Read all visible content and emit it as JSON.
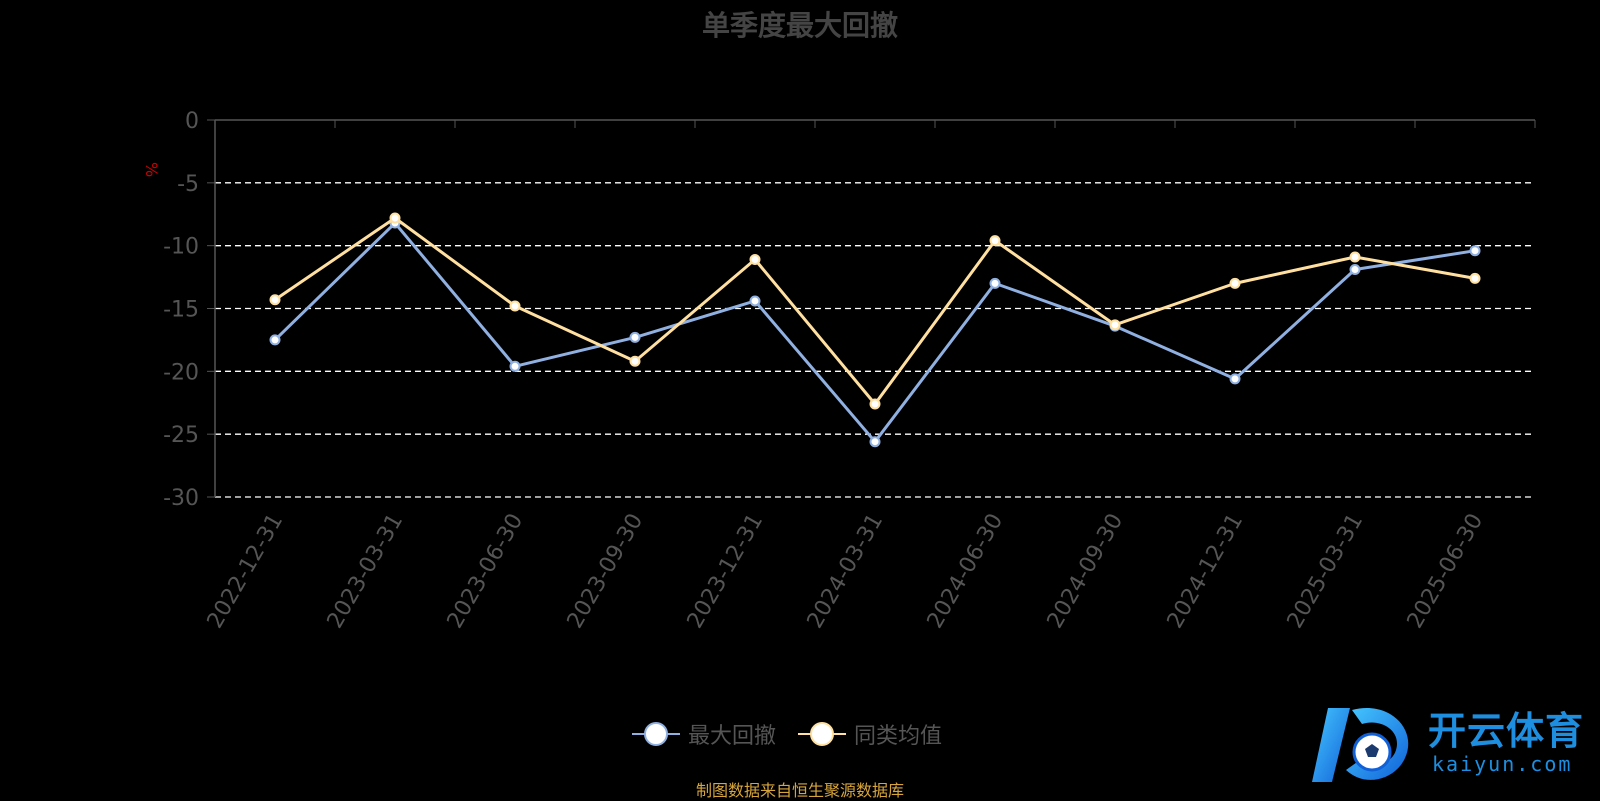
{
  "chart_data": {
    "type": "line",
    "title": "单季度最大回撤",
    "ylabel": "%",
    "ylim": [
      -30,
      0
    ],
    "yticks": [
      0,
      -5,
      -10,
      -15,
      -20,
      -25,
      -30
    ],
    "categories": [
      "2022-12-31",
      "2023-03-31",
      "2023-06-30",
      "2023-09-30",
      "2023-12-31",
      "2024-03-31",
      "2024-06-30",
      "2024-09-30",
      "2024-12-31",
      "2025-03-31",
      "2025-06-30"
    ],
    "series": [
      {
        "name": "最大回撤",
        "color": "#8fb0e0",
        "values": [
          -17.5,
          -8.2,
          -19.6,
          -17.3,
          -14.4,
          -25.6,
          -13.0,
          -16.4,
          -20.6,
          -11.9,
          -10.4
        ]
      },
      {
        "name": "同类均值",
        "color": "#ffe0a0",
        "values": [
          -14.3,
          -7.8,
          -14.8,
          -19.2,
          -11.1,
          -22.6,
          -9.6,
          -16.3,
          -13.0,
          -10.9,
          -12.6
        ]
      }
    ],
    "grid": "horizontal-dashed",
    "legend": "bottom-center"
  },
  "legend": {
    "items": [
      {
        "label": "最大回撤",
        "color": "#8fb0e0"
      },
      {
        "label": "同类均值",
        "color": "#ffe0a0"
      }
    ]
  },
  "footer": {
    "text": "制图数据来自恒生聚源数据库",
    "color": "#d7a53c"
  },
  "logo": {
    "name": "开云体育",
    "domain": "kaiyun.com",
    "color": "#1e8fe0"
  }
}
